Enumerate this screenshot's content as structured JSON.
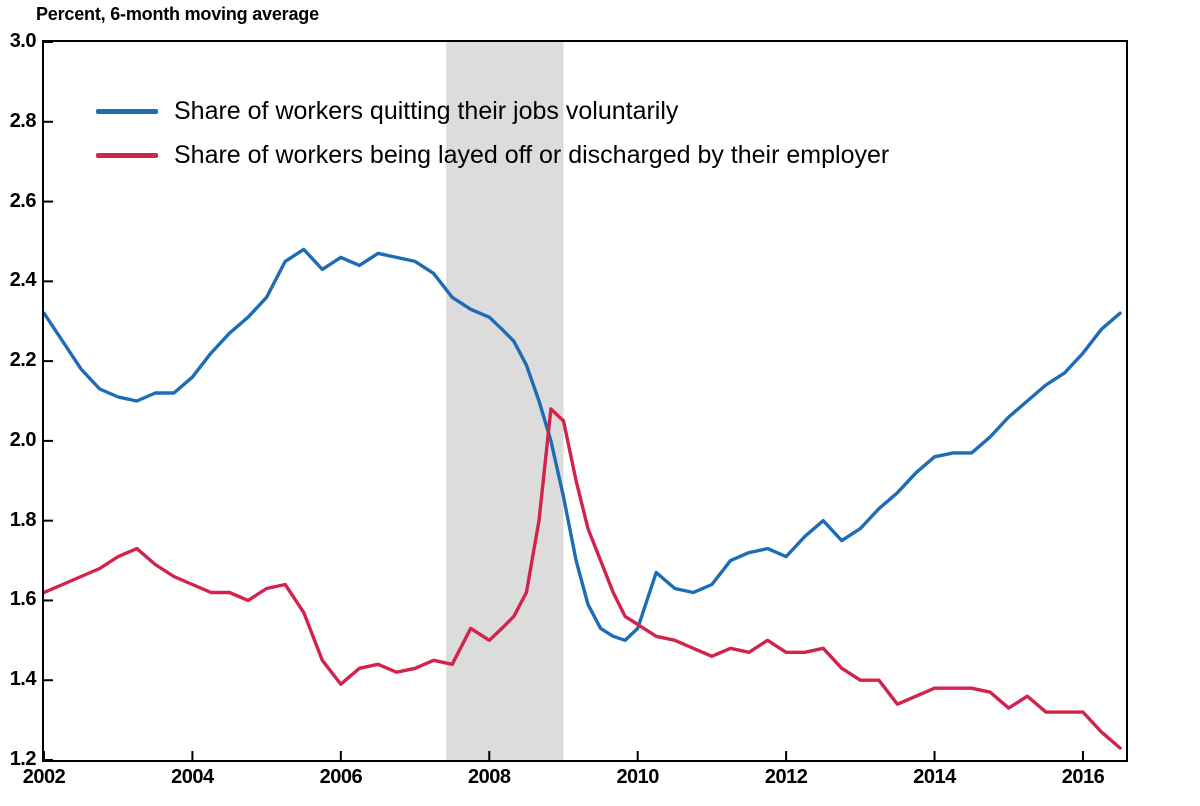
{
  "page": {
    "background": "#ffffff"
  },
  "chart_data": {
    "type": "line",
    "title": "Percent, 6-month moving average",
    "xlabel": "",
    "ylabel": "Percent",
    "xlim": [
      2002,
      2016.58
    ],
    "ylim": [
      1.2,
      3.0
    ],
    "yticks": [
      3.0,
      2.8,
      2.6,
      2.4,
      2.2,
      2.0,
      1.8,
      1.6,
      1.4,
      1.2
    ],
    "xticks": [
      2002,
      2004,
      2006,
      2008,
      2010,
      2012,
      2014,
      2016
    ],
    "grid": false,
    "legend_position": "top-left-inside",
    "recession_band": {
      "x_start": 2007.42,
      "x_end": 2009.0,
      "color": "#dcdcdc"
    },
    "x": [
      2002,
      2002.25,
      2002.5,
      2002.75,
      2003,
      2003.25,
      2003.5,
      2003.75,
      2004,
      2004.25,
      2004.5,
      2004.75,
      2005,
      2005.25,
      2005.5,
      2005.75,
      2006,
      2006.25,
      2006.5,
      2006.75,
      2007,
      2007.25,
      2007.5,
      2007.75,
      2008,
      2008.17,
      2008.33,
      2008.5,
      2008.67,
      2008.83,
      2009,
      2009.17,
      2009.33,
      2009.5,
      2009.67,
      2009.83,
      2010,
      2010.25,
      2010.5,
      2010.75,
      2011,
      2011.25,
      2011.5,
      2011.75,
      2012,
      2012.25,
      2012.5,
      2012.75,
      2013,
      2013.25,
      2013.5,
      2013.75,
      2014,
      2014.25,
      2014.5,
      2014.75,
      2015,
      2015.25,
      2015.5,
      2015.75,
      2016,
      2016.25,
      2016.5
    ],
    "series": [
      {
        "id": "quits",
        "name": "Share of workers quitting their jobs voluntarily",
        "color": "#1e6cb5",
        "values": [
          2.32,
          2.25,
          2.18,
          2.13,
          2.11,
          2.1,
          2.12,
          2.12,
          2.16,
          2.22,
          2.27,
          2.31,
          2.36,
          2.45,
          2.48,
          2.43,
          2.46,
          2.44,
          2.47,
          2.46,
          2.45,
          2.42,
          2.36,
          2.33,
          2.31,
          2.28,
          2.25,
          2.19,
          2.1,
          2.0,
          1.86,
          1.7,
          1.59,
          1.53,
          1.51,
          1.5,
          1.53,
          1.67,
          1.63,
          1.62,
          1.64,
          1.7,
          1.72,
          1.73,
          1.71,
          1.76,
          1.8,
          1.75,
          1.78,
          1.83,
          1.87,
          1.92,
          1.96,
          1.97,
          1.97,
          2.01,
          2.06,
          2.1,
          2.14,
          2.17,
          2.22,
          2.28,
          2.32
        ]
      },
      {
        "id": "layoffs",
        "name": "Share of workers being layed off or discharged by their employer",
        "color": "#d2234e",
        "values": [
          1.62,
          1.64,
          1.66,
          1.68,
          1.71,
          1.73,
          1.69,
          1.66,
          1.64,
          1.62,
          1.62,
          1.6,
          1.63,
          1.64,
          1.57,
          1.45,
          1.39,
          1.43,
          1.44,
          1.42,
          1.43,
          1.45,
          1.44,
          1.53,
          1.5,
          1.53,
          1.56,
          1.62,
          1.8,
          2.08,
          2.05,
          1.9,
          1.78,
          1.7,
          1.62,
          1.56,
          1.54,
          1.51,
          1.5,
          1.48,
          1.46,
          1.48,
          1.47,
          1.5,
          1.47,
          1.47,
          1.48,
          1.43,
          1.4,
          1.4,
          1.34,
          1.36,
          1.38,
          1.38,
          1.38,
          1.37,
          1.33,
          1.36,
          1.32,
          1.32,
          1.32,
          1.27,
          1.23
        ]
      }
    ]
  }
}
